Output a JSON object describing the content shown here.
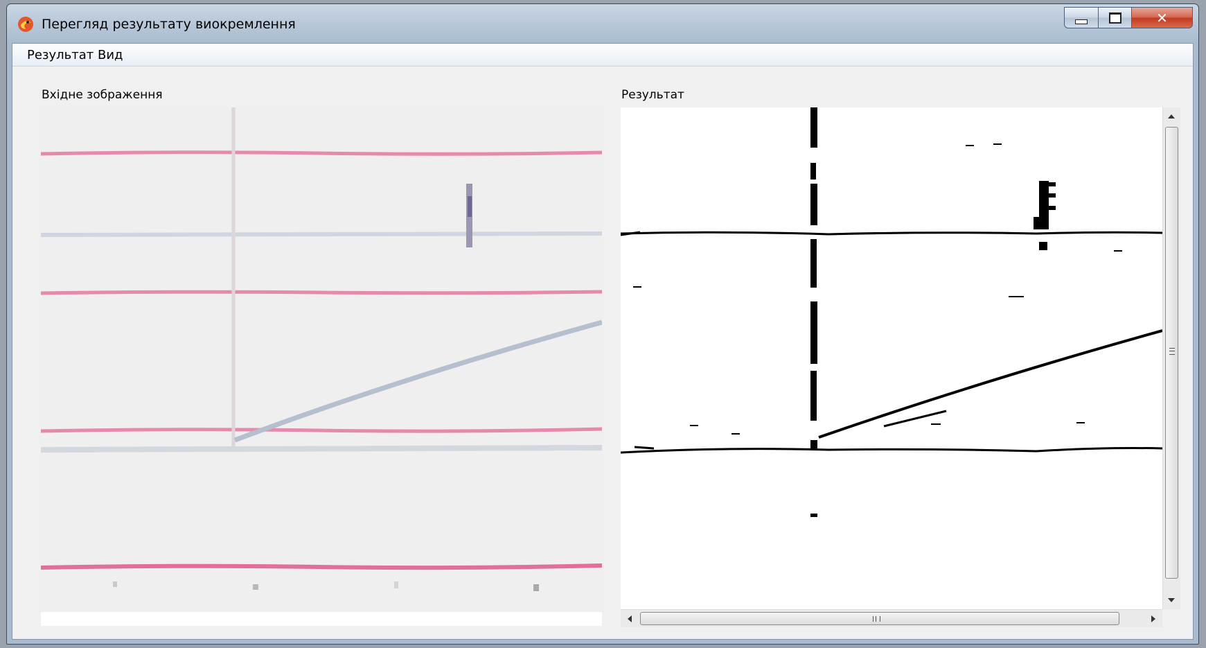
{
  "window": {
    "title": "Перегляд результату виокремлення",
    "icon": "app-logo-icon"
  },
  "menu": {
    "items": [
      {
        "label": "Результат"
      },
      {
        "label": "Вид"
      }
    ]
  },
  "panels": {
    "input_label": "Вхідне зображення",
    "result_label": "Результат"
  },
  "colors": {
    "ruled_line_pink": "#e07aa0",
    "ruled_line_blue": "#c8d0dc",
    "stroke_ink": "#9aa6bb",
    "binary_ink": "#000000",
    "close_button": "#c7402a"
  }
}
